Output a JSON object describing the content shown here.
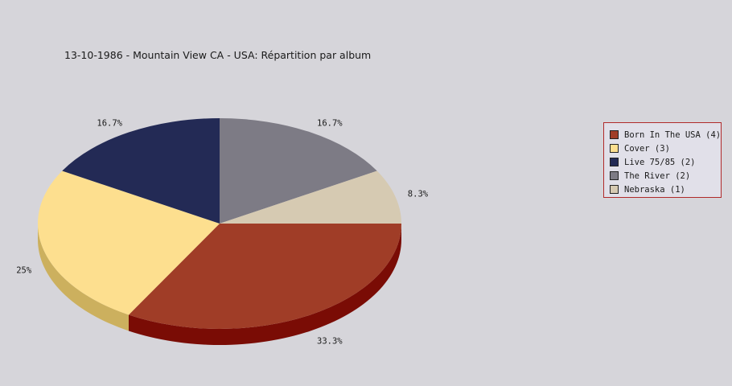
{
  "chart_data": {
    "type": "pie",
    "title": "13-10-1986 - Mountain View CA - USA:  Répartition par album",
    "slices": [
      {
        "label": "Born In The USA (4)",
        "value": 4,
        "percent_label": "33.3%",
        "color": "#a03d27",
        "side_color": "#7a0c05"
      },
      {
        "label": "Cover (3)",
        "value": 3,
        "percent_label": "25%",
        "color": "#fddf8f",
        "side_color": "#ccb05e"
      },
      {
        "label": "Live 75/85 (2)",
        "value": 2,
        "percent_label": "16.7%",
        "color": "#232a55",
        "side_color": "#141838"
      },
      {
        "label": "The River (2)",
        "value": 2,
        "percent_label": "16.7%",
        "color": "#7d7b85",
        "side_color": "#55535b"
      },
      {
        "label": "Nebraska (1)",
        "value": 1,
        "percent_label": "8.3%",
        "color": "#d6cab2",
        "side_color": "#a89c84"
      }
    ],
    "legend_position": "right"
  }
}
